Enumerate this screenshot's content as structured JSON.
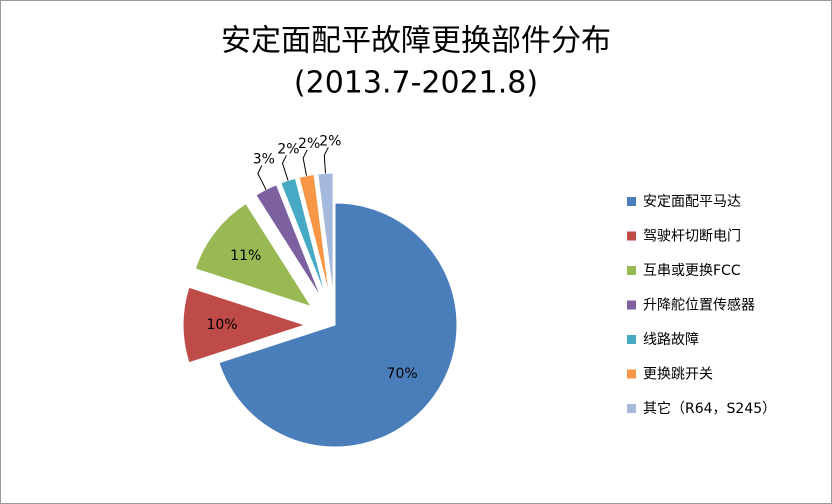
{
  "chart_data": {
    "type": "pie",
    "title": "安定面配平故障更换部件分布",
    "subtitle": "(2013.7-2021.8)",
    "categories": [
      "安定面配平马达",
      "驾驶杆切断电门",
      "互串或更换FCC",
      "升降舵位置传感器",
      "线路故障",
      "更换跳开关",
      "其它（R64，S245）"
    ],
    "values": [
      70,
      10,
      11,
      3,
      2,
      2,
      2
    ],
    "value_labels": [
      "70%",
      "10%",
      "11%",
      "3%",
      "2%",
      "2%",
      "2%"
    ],
    "colors": [
      "#4a7ebb",
      "#be4b48",
      "#98b954",
      "#7d60a0",
      "#46aac5",
      "#f79646",
      "#a5b9dc"
    ],
    "legend": "right"
  }
}
